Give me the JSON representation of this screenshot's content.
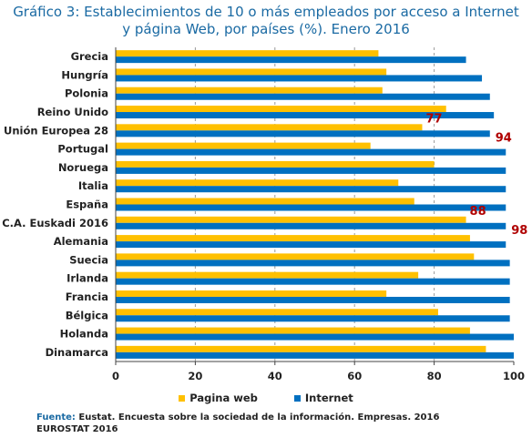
{
  "chart_data": {
    "type": "bar",
    "orientation": "horizontal",
    "title_line1": "Gráfico 3: Establecimientos de 10 o más empleados por acceso a Internet",
    "title_line2": "y página Web, por países (%). Enero 2016",
    "categories": [
      "Grecia",
      "Hungría",
      "Polonia",
      "Reino Unido",
      "Unión Europea 28",
      "Portugal",
      "Noruega",
      "Italia",
      "España",
      "C.A. Euskadi 2016",
      "Alemania",
      "Suecia",
      "Irlanda",
      "Francia",
      "Bélgica",
      "Holanda",
      "Dinamarca"
    ],
    "series": [
      {
        "name": "Pagina web",
        "color": "#ffc000",
        "values": [
          66,
          68,
          67,
          83,
          77,
          64,
          80,
          71,
          75,
          88,
          89,
          90,
          76,
          68,
          81,
          89,
          93
        ]
      },
      {
        "name": "Internet",
        "color": "#0070c0",
        "values": [
          88,
          92,
          94,
          95,
          94,
          98,
          98,
          98,
          98,
          98,
          98,
          99,
          99,
          99,
          99,
          100,
          100
        ]
      }
    ],
    "xlim": [
      0,
      100
    ],
    "x_ticks": [
      "0",
      "20",
      "40",
      "60",
      "80",
      "100"
    ],
    "grid": true,
    "legend_position": "bottom",
    "data_labels": [
      {
        "category": "Unión Europea 28",
        "series": "Pagina web",
        "text": "77"
      },
      {
        "category": "Unión Europea 28",
        "series": "Internet",
        "text": "94"
      },
      {
        "category": "C.A. Euskadi 2016",
        "series": "Pagina web",
        "text": "88"
      },
      {
        "category": "C.A. Euskadi 2016",
        "series": "Internet",
        "text": "98"
      }
    ]
  },
  "source": {
    "prefix": "Fuente:",
    "line1": " Eustat. Encuesta sobre la sociedad de la información. Empresas. 2016",
    "line2": "EUROSTAT 2016"
  }
}
